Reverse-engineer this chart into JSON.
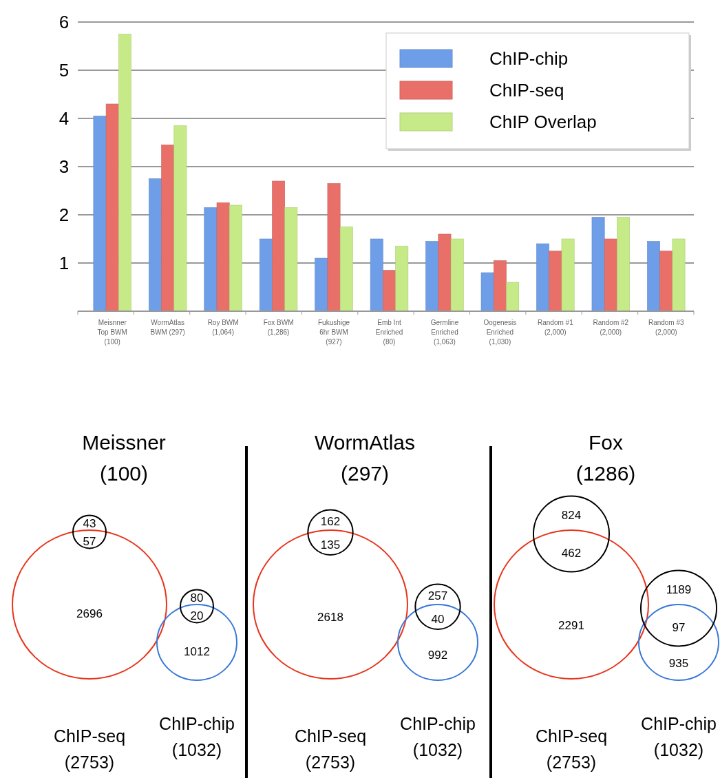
{
  "chart_data": [
    {
      "type": "bar",
      "categories": [
        "Meisnner Top BWM (100)",
        "WormAtlas BWM (297)",
        "Roy BWM (1,064)",
        "Fox BWM (1,286)",
        "Fukushige 6hr BWM (927)",
        "Emb Int Enriched (80)",
        "Germline Enriched (1,063)",
        "Oogenesis Enriched (1,030)",
        "Random #1 (2,000)",
        "Random #2 (2,000)",
        "Random #3 (2,000)"
      ],
      "series": [
        {
          "name": "ChIP-chip",
          "color": "#6f9ee8",
          "values": [
            4.05,
            2.75,
            2.15,
            1.5,
            1.1,
            1.5,
            1.45,
            0.8,
            1.4,
            1.95,
            1.45
          ]
        },
        {
          "name": "ChIP-seq",
          "color": "#e87068",
          "values": [
            4.3,
            3.45,
            2.25,
            2.7,
            2.65,
            0.85,
            1.6,
            1.05,
            1.25,
            1.5,
            1.25
          ]
        },
        {
          "name": "ChIP Overlap",
          "color": "#c6ea88",
          "values": [
            5.75,
            3.85,
            2.2,
            2.15,
            1.75,
            1.35,
            1.5,
            0.6,
            1.5,
            1.95,
            1.5
          ]
        }
      ],
      "ylim": [
        0,
        6
      ],
      "yticks": [
        {
          "value": 0,
          "label": null
        },
        1,
        2,
        3,
        4,
        5,
        6
      ],
      "grid": "y",
      "legend": "top right"
    },
    {
      "type": "other",
      "title": "Meissner",
      "subtitle": "(100)",
      "annotations": [
        "43",
        "57",
        "2696",
        "80",
        "20",
        "1012",
        "ChIP-seq\n(2753)",
        "ChIP-chip\n(1032)"
      ]
    },
    {
      "type": "other",
      "title": "WormAtlas",
      "subtitle": "(297)",
      "annotations": [
        "162",
        "135",
        "2618",
        "257",
        "40",
        "992",
        "ChIP-seq\n(2753)",
        "ChIP-chip\n(1032)"
      ]
    },
    {
      "type": "other",
      "title": "Fox",
      "subtitle": "(1286)",
      "annotations": [
        "824",
        "462",
        "2291",
        "1189",
        "97",
        "935",
        "ChIP-seq\n(2753)",
        "ChIP-chip\n(1032)"
      ]
    }
  ]
}
